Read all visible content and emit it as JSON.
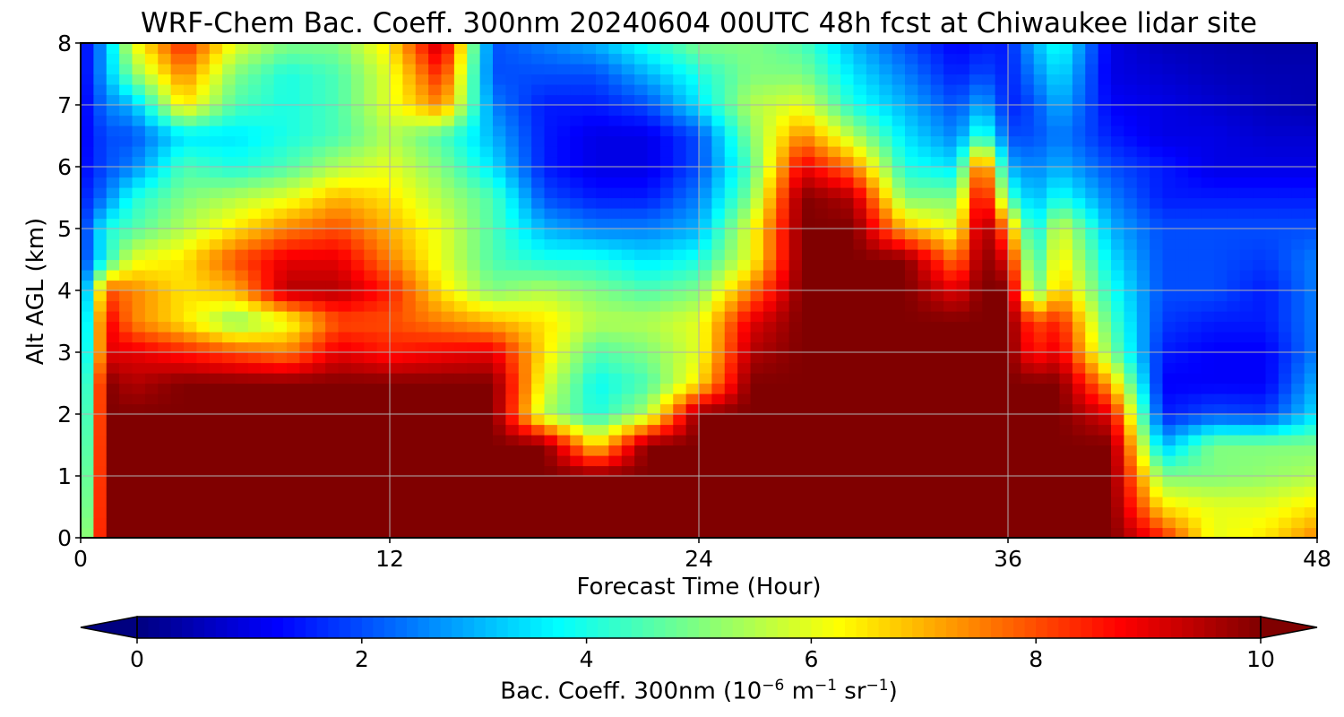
{
  "chart_data": {
    "type": "heatmap",
    "title": "WRF-Chem Bac. Coeff. 300nm  20240604 00UTC 48h fcst at Chiwaukee lidar site",
    "xlabel": "Forecast Time (Hour)",
    "ylabel": "Alt AGL (km)",
    "xlim": [
      0,
      48
    ],
    "ylim": [
      0,
      8
    ],
    "x_ticks": [
      "0",
      "12",
      "24",
      "36",
      "48"
    ],
    "y_ticks": [
      "0",
      "1",
      "2",
      "3",
      "4",
      "5",
      "6",
      "7",
      "8"
    ],
    "grid": true,
    "colorbar": {
      "label_prefix": "Bac. Coeff. 300nm  (10",
      "label_exp1": "−6",
      "label_mid": " m",
      "label_exp2": "−1",
      "label_mid2": " sr",
      "label_exp3": "−1",
      "label_suffix": ")",
      "range": [
        0,
        10
      ],
      "ticks": [
        "0",
        "2",
        "4",
        "6",
        "8",
        "10"
      ],
      "extend": "both",
      "colormap": "jet"
    },
    "x": [
      0,
      1,
      2,
      4,
      6,
      8,
      10,
      12,
      14,
      16,
      18,
      20,
      22,
      24,
      26,
      28,
      30,
      32,
      34,
      35,
      36,
      37,
      38,
      40,
      42,
      44,
      46,
      48
    ],
    "y": [
      0,
      0.5,
      1,
      1.5,
      2,
      2.5,
      3,
      3.5,
      4,
      4.5,
      5,
      5.5,
      6,
      6.5,
      7,
      7.5,
      8
    ],
    "values": [
      [
        3.5,
        10,
        10,
        10,
        10,
        10,
        10,
        10,
        10,
        10,
        10,
        10,
        10,
        10,
        10,
        10,
        10,
        10,
        10,
        10,
        10,
        10,
        10,
        10,
        8.5,
        6,
        6.5,
        7.5
      ],
      [
        3.2,
        10,
        10,
        10,
        10,
        10,
        10,
        10,
        10,
        10,
        10,
        10,
        10,
        10,
        10,
        10,
        10,
        10,
        10,
        10,
        10,
        10,
        10,
        10,
        6.5,
        6,
        6,
        6.5
      ],
      [
        3,
        10,
        10,
        10,
        10,
        10,
        10,
        10,
        10,
        10,
        10,
        10,
        10,
        10,
        10,
        10,
        10,
        10,
        10,
        10,
        10,
        10,
        10,
        10,
        5,
        5,
        5.2,
        5.5
      ],
      [
        2.8,
        10,
        10,
        10,
        10,
        10,
        10,
        10,
        10,
        10,
        10,
        6.5,
        10,
        10,
        10,
        10,
        10,
        10,
        10,
        10,
        10,
        10,
        10,
        10,
        3,
        5,
        5,
        5
      ],
      [
        2.6,
        10,
        10,
        10,
        10,
        10,
        10,
        10,
        10,
        10,
        5.5,
        4,
        5.5,
        10,
        10,
        10,
        10,
        10,
        10,
        10,
        10,
        10,
        10,
        9,
        1.5,
        2,
        1.8,
        3.5
      ],
      [
        2.4,
        10,
        9.5,
        10,
        10,
        10,
        10,
        10,
        10,
        10,
        6,
        3.8,
        4.5,
        6.5,
        10,
        10,
        10,
        10,
        10,
        10,
        10,
        10,
        10,
        7,
        1.2,
        1.2,
        1.2,
        3
      ],
      [
        2.2,
        9,
        9,
        8.5,
        8,
        7.5,
        9,
        8.5,
        8.8,
        9,
        6.5,
        4.5,
        5,
        6,
        9.5,
        10,
        10,
        10,
        10,
        10,
        10,
        8.5,
        9,
        5,
        1.5,
        1.2,
        1.2,
        2.5
      ],
      [
        2,
        9,
        7.5,
        6.5,
        5,
        6,
        8,
        8,
        7.5,
        7,
        6.5,
        5.5,
        5.5,
        6,
        9,
        10,
        10,
        10,
        10,
        10,
        10,
        8,
        8.5,
        4.5,
        1.8,
        1.5,
        1.5,
        2.5
      ],
      [
        1.8,
        8,
        7.5,
        6.5,
        7,
        9.5,
        9.5,
        8.5,
        6.5,
        5,
        5.5,
        5,
        4.5,
        5,
        7.5,
        10,
        10,
        10,
        9,
        10,
        10,
        4.5,
        7,
        4,
        2,
        2,
        1.5,
        2.5
      ],
      [
        1.6,
        4,
        6,
        6.5,
        8,
        9,
        9,
        7.5,
        6,
        4.5,
        4,
        4,
        3.5,
        4,
        6,
        10,
        10,
        10,
        7.5,
        10,
        9,
        4,
        6.5,
        3.5,
        2,
        2,
        1.8,
        2.5
      ],
      [
        1.5,
        4,
        4.5,
        5.5,
        6.5,
        7.5,
        8,
        7,
        6,
        4.5,
        3,
        2.5,
        2.5,
        3,
        6,
        10,
        10,
        7,
        6,
        10,
        7.5,
        3.5,
        6,
        3,
        2,
        2,
        2,
        2
      ],
      [
        1.4,
        2.5,
        4,
        5,
        5.5,
        6,
        7,
        6.5,
        5.5,
        4.5,
        2,
        1.5,
        1.5,
        2.5,
        5,
        10,
        9.5,
        5,
        5,
        9.5,
        4.5,
        3,
        4,
        2.5,
        1.5,
        1.5,
        1.5,
        1.5
      ],
      [
        1.2,
        2,
        2.5,
        4.5,
        4,
        4.5,
        5.5,
        6,
        5,
        3.5,
        1.5,
        1,
        1,
        2,
        4.5,
        9,
        7.5,
        4,
        3.5,
        8.5,
        3,
        2.5,
        3,
        2,
        1.5,
        1,
        1,
        1
      ],
      [
        1.1,
        2,
        2,
        3.5,
        3.5,
        4,
        4.5,
        5.5,
        4.5,
        3,
        1.5,
        1,
        1,
        2,
        5,
        7.5,
        5.5,
        3.5,
        2.5,
        4.5,
        2,
        2,
        2.5,
        1.5,
        1,
        1,
        0.8,
        0.8
      ],
      [
        1,
        2.5,
        3,
        6.5,
        4.5,
        4,
        4.5,
        6,
        7.5,
        2.5,
        1.5,
        1.5,
        2,
        3.5,
        5.5,
        6,
        4,
        3,
        2,
        3,
        1.5,
        2,
        3,
        1.2,
        1,
        0.8,
        0.6,
        0.5
      ],
      [
        1,
        3,
        5,
        7.5,
        5,
        4,
        4.5,
        6,
        8.5,
        2,
        2,
        2,
        3,
        4,
        5,
        5,
        3.5,
        2.5,
        1.5,
        2,
        1.5,
        2.5,
        3.5,
        1,
        0.8,
        0.6,
        0.5,
        0.5
      ],
      [
        1,
        3,
        6,
        8.5,
        6,
        5,
        5,
        6.5,
        9.5,
        2,
        2.5,
        3,
        4,
        5,
        5,
        4.5,
        3,
        2,
        1.2,
        1.5,
        1.5,
        3,
        4,
        1,
        0.6,
        0.5,
        0.4,
        0.4
      ]
    ]
  }
}
